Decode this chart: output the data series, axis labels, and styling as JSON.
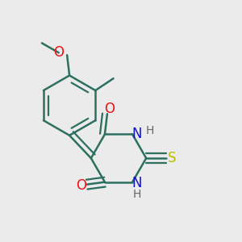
{
  "background_color": "#ebebeb",
  "bond_color": "#2d7060",
  "bond_width": 1.8,
  "atom_colors": {
    "O": "#ee1111",
    "N": "#1111cc",
    "S": "#bbbb00",
    "H": "#666666",
    "C": "#2d7060"
  }
}
